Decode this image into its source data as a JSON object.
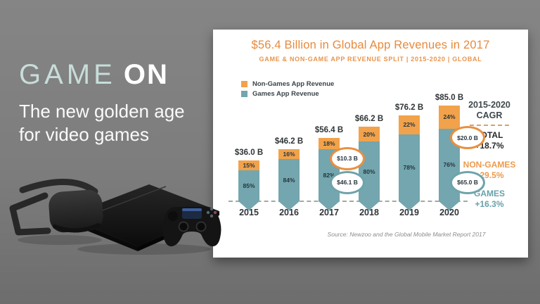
{
  "slide": {
    "title_accent": "GAME",
    "title_bold": "ON",
    "tagline_line1": "The new golden age",
    "tagline_line2": "for video games"
  },
  "chart": {
    "title": "$56.4 Billion in Global App Revenues in 2017",
    "subtitle": "GAME & NON-GAME APP REVENUE SPLIT | 2015-2020 | GLOBAL",
    "legend": [
      {
        "label": "Non-Games App Revenue",
        "color": "#F2A24A"
      },
      {
        "label": "Games App Revenue",
        "color": "#73A6AE"
      }
    ],
    "cagr": {
      "heading_line1": "2015-2020",
      "heading_line2": "CAGR",
      "total_label": "TOTAL",
      "total_value": "+18.7%",
      "nongames_label": "NON-GAMES",
      "nongames_value": "+29.5%",
      "games_label": "GAMES",
      "games_value": "+16.3%"
    },
    "source": "Source: Newzoo and the Global Mobile Market Report 2017"
  },
  "chart_data": {
    "type": "bar",
    "stacked": true,
    "categories": [
      "2015",
      "2016",
      "2017",
      "2018",
      "2019",
      "2020"
    ],
    "totals_billion": [
      36.0,
      46.2,
      56.4,
      66.2,
      76.2,
      85.0
    ],
    "total_labels": [
      "$36.0 B",
      "$46.2 B",
      "$56.4 B",
      "$66.2 B",
      "$76.2 B",
      "$85.0 B"
    ],
    "series": [
      {
        "name": "Games App Revenue",
        "color": "#73A6AE",
        "percent": [
          85,
          84,
          82,
          80,
          78,
          76
        ]
      },
      {
        "name": "Non-Games App Revenue",
        "color": "#F2A24A",
        "percent": [
          15,
          16,
          18,
          20,
          22,
          24
        ]
      }
    ],
    "callouts": [
      {
        "year": "2017",
        "series": "Non-Games App Revenue",
        "label": "$10.3 B",
        "placement": "upper",
        "color": "#E98F3F"
      },
      {
        "year": "2017",
        "series": "Games App Revenue",
        "label": "$46.1 B",
        "placement": "lower",
        "color": "#6FA3AB"
      },
      {
        "year": "2020",
        "series": "Non-Games App Revenue",
        "label": "$20.0 B",
        "placement": "upper",
        "color": "#E98F3F"
      },
      {
        "year": "2020",
        "series": "Games App Revenue",
        "label": "$65.0 B",
        "placement": "lower",
        "color": "#6FA3AB"
      }
    ],
    "title": "$56.4 Billion in Global App Revenues in 2017",
    "xlabel": "",
    "ylabel": "",
    "legend_position": "top-left",
    "grid": false
  }
}
